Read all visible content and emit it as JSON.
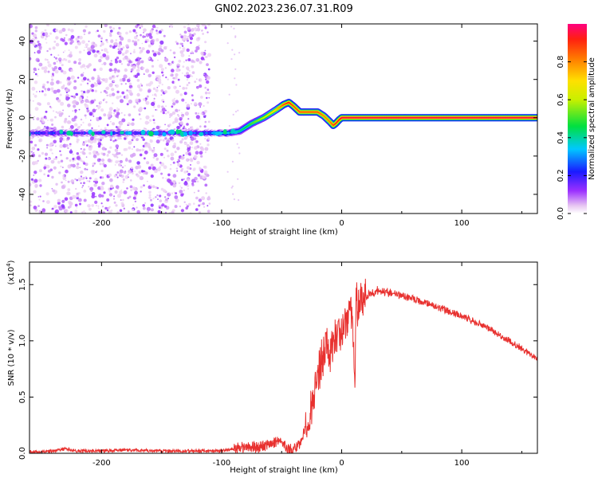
{
  "title": "GN02.2023.236.07.31.R09",
  "colors": {
    "snr_line": "#e8312f",
    "axis": "#000000",
    "background": "#ffffff"
  },
  "chart_data": [
    {
      "type": "heatmap",
      "xlabel": "Height of straight line (km)",
      "ylabel": "Frequency (Hz)",
      "xlim": [
        -260,
        163
      ],
      "ylim": [
        -50,
        49
      ],
      "x_ticks": [
        -200,
        -100,
        0,
        100
      ],
      "y_ticks": [
        -40,
        -20,
        0,
        20,
        40
      ],
      "colorbar": {
        "label": "Normalized spectral amplitude",
        "range": [
          0,
          1
        ],
        "ticks": [
          "0.0",
          "0.2",
          "0.4",
          "0.6",
          "0.8"
        ]
      },
      "grid": false,
      "ridge": {
        "x": [
          -260,
          -200,
          -150,
          -110,
          -95,
          -85,
          -75,
          -65,
          -55,
          -48,
          -44,
          -40,
          -35,
          -30,
          -25,
          -20,
          -15,
          -10,
          -7,
          -5,
          -2,
          0,
          5,
          163
        ],
        "y": [
          -8,
          -8,
          -8,
          -8,
          -8,
          -7,
          -3,
          0,
          4,
          7,
          8,
          6,
          3,
          3,
          3,
          3,
          1,
          -2,
          -4,
          -3,
          -1,
          0,
          0,
          0
        ],
        "amp": [
          0.2,
          0.2,
          0.2,
          0.25,
          0.35,
          0.4,
          0.5,
          0.6,
          0.7,
          0.85,
          0.9,
          0.85,
          0.85,
          0.85,
          0.85,
          0.85,
          0.8,
          0.8,
          0.85,
          0.9,
          0.9,
          0.95,
          0.95,
          0.95
        ]
      },
      "noise_region_x": [
        -260,
        -110
      ]
    },
    {
      "type": "line",
      "xlabel": "Height of straight line (km)",
      "ylabel": "SNR (10 * v/v)",
      "y_multiplier": "(x10",
      "y_multiplier_exp": "4",
      "y_multiplier_close": ")",
      "xlim": [
        -260,
        163
      ],
      "ylim": [
        0,
        1.7
      ],
      "x_ticks": [
        -200,
        -100,
        0,
        100
      ],
      "y_ticks": [
        "0.0",
        "0.5",
        "1.0",
        "1.5"
      ],
      "grid": false,
      "series": [
        {
          "x": [
            -260,
            -240,
            -230,
            -220,
            -200,
            -180,
            -150,
            -120,
            -100,
            -90,
            -80,
            -70,
            -60,
            -50,
            -45,
            -40,
            -35,
            -30,
            -27,
            -24,
            -20,
            -15,
            -12,
            -8,
            -5,
            -2,
            0,
            3,
            6,
            9,
            11,
            12,
            13,
            15,
            18,
            22,
            26,
            30,
            35,
            40,
            50,
            60,
            80,
            100,
            120,
            140,
            163
          ],
          "y": [
            0.01,
            0.02,
            0.04,
            0.02,
            0.02,
            0.03,
            0.02,
            0.02,
            0.02,
            0.04,
            0.06,
            0.05,
            0.08,
            0.12,
            0.04,
            0.03,
            0.08,
            0.22,
            0.33,
            0.45,
            0.65,
            0.88,
            0.95,
            0.9,
            1.0,
            1.1,
            1.05,
            1.2,
            1.3,
            1.25,
            0.5,
            1.62,
            1.3,
            1.35,
            1.38,
            1.41,
            1.43,
            1.45,
            1.44,
            1.43,
            1.4,
            1.37,
            1.3,
            1.22,
            1.12,
            1.0,
            0.84
          ]
        }
      ]
    }
  ]
}
